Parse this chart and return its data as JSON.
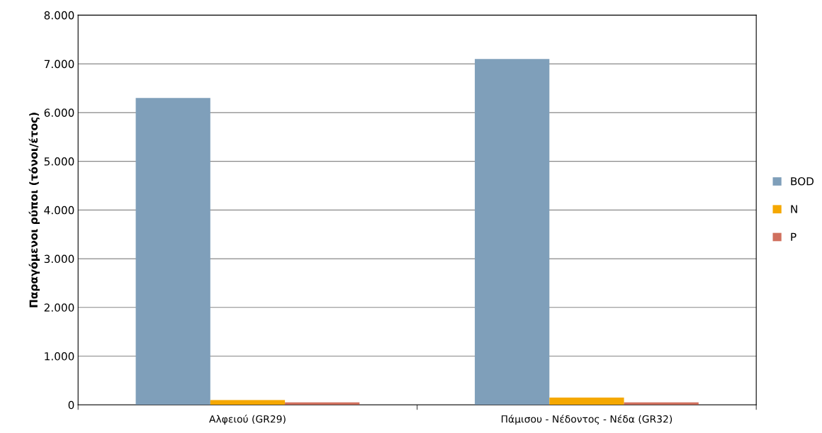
{
  "chart_data": {
    "type": "bar",
    "ylabel": "Παραγόμενοι ρύποι (τόνοι/έτος)",
    "categories": [
      "Αλφειού (GR29)",
      "Πάμισου - Νέδοντος - Νέδα (GR32)"
    ],
    "series": [
      {
        "name": "BOD",
        "color": "#7f9fba",
        "values": [
          6300,
          7100
        ]
      },
      {
        "name": "N",
        "color": "#f5a800",
        "values": [
          100,
          150
        ]
      },
      {
        "name": "P",
        "color": "#d0705e",
        "values": [
          50,
          50
        ]
      }
    ],
    "ylim": [
      0,
      8000
    ],
    "yticks": [
      {
        "value": 0,
        "label": "0"
      },
      {
        "value": 1000,
        "label": "1.000"
      },
      {
        "value": 2000,
        "label": "2.000"
      },
      {
        "value": 3000,
        "label": "3.000"
      },
      {
        "value": 4000,
        "label": "4.000"
      },
      {
        "value": 5000,
        "label": "5.000"
      },
      {
        "value": 6000,
        "label": "6.000"
      },
      {
        "value": 7000,
        "label": "7.000"
      },
      {
        "value": 8000,
        "label": "8.000"
      }
    ],
    "grid": "y",
    "legend": "right"
  }
}
